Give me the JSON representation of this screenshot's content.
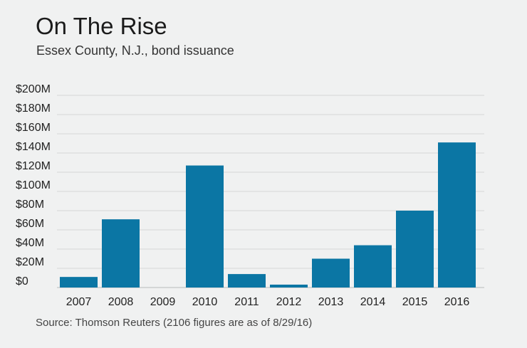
{
  "header": {
    "title": "On The Rise",
    "subtitle": "Essex County, N.J., bond issuance"
  },
  "footer": {
    "source": "Source: Thomson Reuters (2106 figures are as of 8/29/16)"
  },
  "colors": {
    "bar": "#0b76a4",
    "grid": "#d6d8d8",
    "background": "#f0f1f1"
  },
  "chart_data": {
    "type": "bar",
    "title": "On The Rise",
    "subtitle": "Essex County, N.J., bond issuance",
    "xlabel": "",
    "ylabel": "",
    "categories": [
      "2007",
      "2008",
      "2009",
      "2010",
      "2011",
      "2012",
      "2013",
      "2014",
      "2015",
      "2016"
    ],
    "values": [
      11,
      71,
      0,
      127,
      14,
      3,
      30,
      44,
      80,
      151
    ],
    "ylim": [
      0,
      200
    ],
    "yticks": [
      0,
      20,
      40,
      60,
      80,
      100,
      120,
      140,
      160,
      180,
      200
    ],
    "ytick_labels": [
      "$0",
      "$20M",
      "$40M",
      "$60M",
      "$80M",
      "$100M",
      "$120M",
      "$140M",
      "$160M",
      "$180M",
      "$200M"
    ],
    "grid": true,
    "legend": "none"
  }
}
